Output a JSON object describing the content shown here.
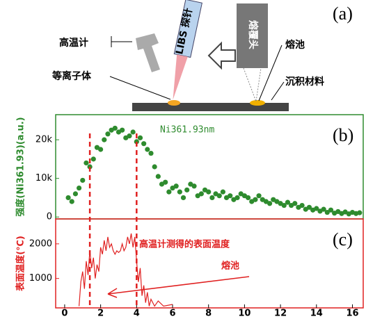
{
  "diagram": {
    "panel_label": "(a)",
    "pyrometer": "高温计",
    "plasma": "等离子体",
    "libs_probe": "LIBS 探针",
    "cladding_head": "熔覆头",
    "melt_pool": "熔池",
    "deposited_material": "沉积材料"
  },
  "chart_data": [
    {
      "type": "scatter",
      "panel_label": "(b)",
      "annotation": "Ni361.93nm",
      "y_label": "强度(Ni361.93)(a.u.)",
      "color": "#2e8b2e",
      "line_color": "#e02020",
      "xlim": [
        -0.5,
        16.6
      ],
      "ylim": [
        -500,
        26500
      ],
      "yticks": [
        0,
        {
          "value": 10000,
          "label": "10k"
        },
        {
          "value": 20000,
          "label": "20k"
        }
      ],
      "vlines": [
        1.4,
        4.0
      ],
      "x": [
        0.2,
        0.4,
        0.6,
        0.8,
        1.0,
        1.2,
        1.4,
        1.6,
        1.8,
        2.0,
        2.2,
        2.4,
        2.6,
        2.8,
        3.0,
        3.2,
        3.4,
        3.6,
        3.8,
        4.0,
        4.2,
        4.4,
        4.6,
        4.8,
        5.0,
        5.2,
        5.4,
        5.6,
        5.8,
        6.0,
        6.2,
        6.4,
        6.6,
        6.8,
        7.0,
        7.2,
        7.4,
        7.6,
        7.8,
        8.0,
        8.2,
        8.4,
        8.6,
        8.8,
        9.0,
        9.2,
        9.4,
        9.6,
        9.8,
        10.0,
        10.2,
        10.4,
        10.6,
        10.8,
        11.0,
        11.2,
        11.4,
        11.6,
        11.8,
        12.0,
        12.2,
        12.4,
        12.6,
        12.8,
        13.0,
        13.2,
        13.4,
        13.6,
        13.8,
        14.0,
        14.2,
        14.4,
        14.6,
        14.8,
        15.0,
        15.2,
        15.4,
        15.6,
        15.8,
        16.0,
        16.2,
        16.4
      ],
      "values": [
        5000,
        4000,
        6000,
        7500,
        9500,
        14000,
        13000,
        15000,
        18000,
        17500,
        20000,
        21500,
        22500,
        23000,
        22000,
        22500,
        20500,
        21000,
        22000,
        19500,
        20500,
        19000,
        17500,
        16500,
        13000,
        10500,
        8500,
        9000,
        6500,
        7500,
        8000,
        6500,
        5000,
        7000,
        8500,
        8000,
        5500,
        6000,
        7000,
        6500,
        5000,
        6000,
        5500,
        6500,
        5000,
        5500,
        4500,
        5000,
        6000,
        5500,
        5000,
        4000,
        4500,
        5500,
        4500,
        4000,
        3500,
        4500,
        4000,
        3500,
        3000,
        3800,
        3000,
        3500,
        2500,
        3000,
        2000,
        2500,
        1800,
        2200,
        1500,
        2000,
        1200,
        1800,
        1000,
        1400,
        900,
        1300,
        800,
        1200,
        900,
        1100
      ]
    },
    {
      "type": "line",
      "panel_label": "(c)",
      "y_label": "表面温度(℃)",
      "annotation": "高温计测得的表面温度",
      "annotation2": "熔池",
      "color": "#e02020",
      "xlim": [
        -0.5,
        16.6
      ],
      "ylim": [
        150,
        2720
      ],
      "yticks": [
        1000,
        2000
      ],
      "xticks": [
        0,
        2,
        4,
        6,
        8,
        10,
        12,
        14,
        16
      ],
      "x": [
        0.8,
        0.9,
        1.0,
        1.1,
        1.2,
        1.3,
        1.4,
        1.5,
        1.6,
        1.7,
        1.8,
        1.9,
        2.0,
        2.1,
        2.2,
        2.3,
        2.4,
        2.5,
        2.6,
        2.7,
        2.8,
        2.9,
        3.0,
        3.1,
        3.2,
        3.3,
        3.4,
        3.5,
        3.6,
        3.7,
        3.8,
        3.9,
        4.0,
        4.1,
        4.2,
        4.3,
        4.4,
        4.5,
        4.6,
        4.7,
        4.8,
        5.0,
        5.2,
        5.5,
        6.0
      ],
      "values": [
        200,
        900,
        1200,
        700,
        1500,
        1100,
        1800,
        1300,
        1600,
        1000,
        1400,
        1200,
        1900,
        1700,
        2100,
        1800,
        2200,
        1900,
        2000,
        1800,
        1700,
        1800,
        1750,
        1800,
        2000,
        1800,
        1900,
        2200,
        2000,
        2300,
        1900,
        2200,
        1500,
        900,
        1300,
        500,
        800,
        300,
        600,
        200,
        400,
        200,
        350,
        200,
        250
      ]
    }
  ]
}
